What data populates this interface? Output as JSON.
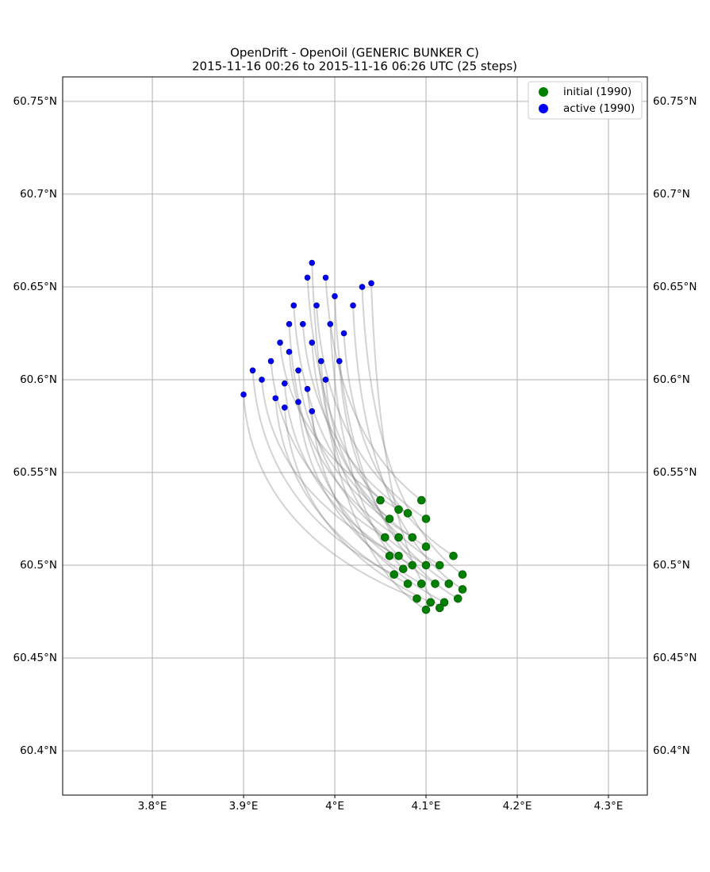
{
  "chart_data": {
    "type": "scatter",
    "title": "OpenDrift - OpenOil (GENERIC BUNKER C)",
    "subtitle": "2015-11-16 00:26 to 2015-11-16 06:26 UTC (25 steps)",
    "xlim": [
      3.7017,
      4.3426
    ],
    "ylim": [
      60.3761,
      60.7632
    ],
    "xticks": [
      {
        "value": 3.8,
        "label": "3.8°E"
      },
      {
        "value": 3.9,
        "label": "3.9°E"
      },
      {
        "value": 4,
        "label": "4°E"
      },
      {
        "value": 4.1,
        "label": "4.1°E"
      },
      {
        "value": 4.2,
        "label": "4.2°E"
      },
      {
        "value": 4.3,
        "label": "4.3°E"
      }
    ],
    "yticks": [
      {
        "value": 60.4,
        "label": "60.4°N"
      },
      {
        "value": 60.45,
        "label": "60.45°N"
      },
      {
        "value": 60.5,
        "label": "60.5°N"
      },
      {
        "value": 60.55,
        "label": "60.55°N"
      },
      {
        "value": 60.6,
        "label": "60.6°N"
      },
      {
        "value": 60.65,
        "label": "60.65°N"
      },
      {
        "value": 60.7,
        "label": "60.7°N"
      },
      {
        "value": 60.75,
        "label": "60.75°N"
      }
    ],
    "grid": true,
    "legend": "upper right",
    "trajectory_color": "#808080",
    "series": [
      {
        "name": "initial (1990)",
        "color": "#007f00",
        "x": [
          4.05,
          4.06,
          4.07,
          4.08,
          4.095,
          4.1,
          4.055,
          4.07,
          4.085,
          4.1,
          4.07,
          4.085,
          4.1,
          4.115,
          4.13,
          4.14,
          4.065,
          4.08,
          4.095,
          4.11,
          4.125,
          4.14,
          4.09,
          4.105,
          4.12,
          4.135,
          4.1,
          4.115,
          4.075,
          4.06
        ],
        "values": [
          60.535,
          60.525,
          60.53,
          60.528,
          60.535,
          60.525,
          60.515,
          60.515,
          60.515,
          60.51,
          60.505,
          60.5,
          60.5,
          60.5,
          60.505,
          60.495,
          60.495,
          60.49,
          60.49,
          60.49,
          60.49,
          60.487,
          60.482,
          60.48,
          60.48,
          60.482,
          60.476,
          60.477,
          60.498,
          60.505
        ]
      },
      {
        "name": "active (1990)",
        "color": "#0000ff",
        "x": [
          3.97,
          3.955,
          3.94,
          3.965,
          3.99,
          3.98,
          3.93,
          3.95,
          3.96,
          3.975,
          3.92,
          3.945,
          3.97,
          3.99,
          4.01,
          4.03,
          3.91,
          3.935,
          3.96,
          3.985,
          4.005,
          4.02,
          3.9,
          3.945,
          3.975,
          4.0,
          3.975,
          4.04,
          3.995,
          3.95
        ],
        "values": [
          60.655,
          60.64,
          60.62,
          60.63,
          60.655,
          60.64,
          60.61,
          60.615,
          60.605,
          60.62,
          60.6,
          60.598,
          60.595,
          60.6,
          60.625,
          60.65,
          60.605,
          60.59,
          60.588,
          60.61,
          60.61,
          60.64,
          60.592,
          60.585,
          60.583,
          60.645,
          60.663,
          60.652,
          60.63,
          60.63
        ]
      }
    ]
  }
}
